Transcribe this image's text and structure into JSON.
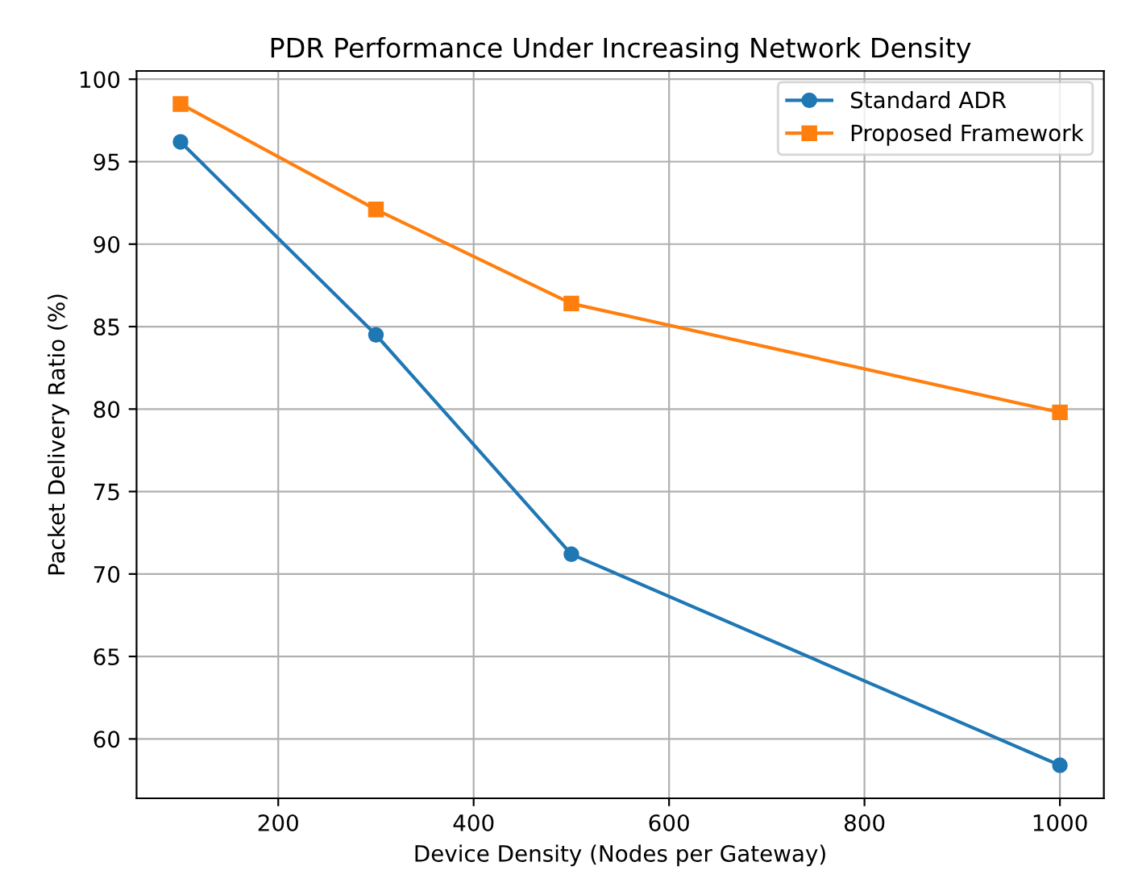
{
  "chart_data": {
    "type": "line",
    "title": "PDR Performance Under Increasing Network Density",
    "xlabel": "Device Density (Nodes per Gateway)",
    "ylabel": "Packet Delivery Ratio (%)",
    "x": [
      100,
      300,
      500,
      1000
    ],
    "series": [
      {
        "name": "Standard ADR",
        "color": "#1f77b4",
        "marker": "circle",
        "values": [
          96.2,
          84.5,
          71.2,
          58.4
        ]
      },
      {
        "name": "Proposed Framework",
        "color": "#ff7f0e",
        "marker": "square",
        "values": [
          98.5,
          92.1,
          86.4,
          79.8
        ]
      }
    ],
    "xlim": [
      55,
      1045
    ],
    "ylim": [
      56.4,
      100.5
    ],
    "xticks": [
      200,
      400,
      600,
      800,
      1000
    ],
    "yticks": [
      60,
      65,
      70,
      75,
      80,
      85,
      90,
      95,
      100
    ],
    "grid": true,
    "legend": "top right",
    "line_style": "solid"
  }
}
